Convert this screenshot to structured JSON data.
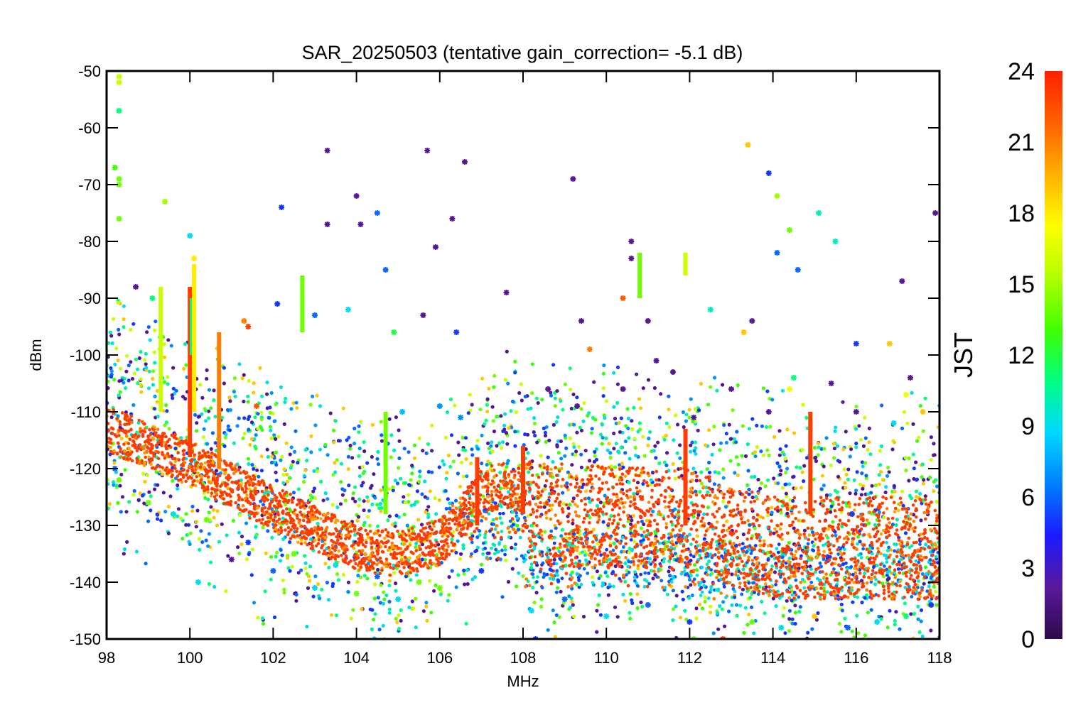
{
  "chart_data": {
    "type": "scatter",
    "title": "SAR_20250503 (tentative gain_correction= -5.1 dB)",
    "xlabel": "MHz",
    "ylabel": "dBm",
    "xlim": [
      98,
      118
    ],
    "ylim": [
      -150,
      -50
    ],
    "x_ticks": [
      "98",
      "100",
      "102",
      "104",
      "106",
      "108",
      "110",
      "112",
      "114",
      "116",
      "118"
    ],
    "y_ticks": [
      "-50",
      "-60",
      "-70",
      "-80",
      "-90",
      "-100",
      "-110",
      "-120",
      "-130",
      "-140",
      "-150"
    ],
    "marker": "asterisk",
    "grid": false,
    "colorbar": {
      "title": "JST",
      "range": [
        0,
        24
      ],
      "ticks": [
        "24",
        "21",
        "18",
        "15",
        "12",
        "9",
        "6",
        "3",
        "0"
      ],
      "colormap": [
        "#2b0a4a",
        "#5a189a",
        "#1a1aff",
        "#0080ff",
        "#00d8ff",
        "#00ff80",
        "#40ff00",
        "#b0ff00",
        "#ffff00",
        "#ffb000",
        "#ff6000",
        "#ff2000"
      ]
    },
    "noise_floor": [
      [
        98,
        -113
      ],
      [
        100,
        -119
      ],
      [
        102,
        -127
      ],
      [
        104,
        -134
      ],
      [
        105,
        -135
      ],
      [
        106,
        -133
      ],
      [
        106.5,
        -129
      ],
      [
        107,
        -124
      ],
      [
        107.5,
        -123
      ],
      [
        108,
        -124
      ],
      [
        108.2,
        -128
      ],
      [
        112,
        -129
      ],
      [
        114,
        -134
      ],
      [
        118,
        -134
      ]
    ],
    "vertical_bands": [
      {
        "x": 99.3,
        "y_top": -88,
        "y_bottom": -110,
        "jst": 16
      },
      {
        "x": 100.0,
        "y_top": -88,
        "y_bottom": -118,
        "jst": 23
      },
      {
        "x": 100.05,
        "y_top": -90,
        "y_bottom": -100,
        "jst": 11
      },
      {
        "x": 100.1,
        "y_top": -84,
        "y_bottom": -110,
        "jst": 18
      },
      {
        "x": 100.7,
        "y_top": -96,
        "y_bottom": -120,
        "jst": 21
      },
      {
        "x": 102.7,
        "y_top": -86,
        "y_bottom": -96,
        "jst": 14
      },
      {
        "x": 104.7,
        "y_top": -110,
        "y_bottom": -128,
        "jst": 14
      },
      {
        "x": 106.9,
        "y_top": -118,
        "y_bottom": -130,
        "jst": 23
      },
      {
        "x": 108.0,
        "y_top": -116,
        "y_bottom": -128,
        "jst": 23
      },
      {
        "x": 110.8,
        "y_top": -82,
        "y_bottom": -90,
        "jst": 14
      },
      {
        "x": 111.9,
        "y_top": -82,
        "y_bottom": -86,
        "jst": 16
      },
      {
        "x": 111.9,
        "y_top": -113,
        "y_bottom": -130,
        "jst": 23
      },
      {
        "x": 114.9,
        "y_top": -110,
        "y_bottom": -128,
        "jst": 23
      }
    ],
    "scattered_points": [
      [
        98.3,
        -51,
        16
      ],
      [
        98.3,
        -52,
        16
      ],
      [
        98.3,
        -57,
        11
      ],
      [
        98.2,
        -67,
        13
      ],
      [
        98.3,
        -69,
        14
      ],
      [
        98.3,
        -70,
        14
      ],
      [
        98.3,
        -76,
        14
      ],
      [
        99.4,
        -73,
        15
      ],
      [
        100.0,
        -79,
        9
      ],
      [
        100.1,
        -83,
        18
      ],
      [
        103.3,
        -64,
        2
      ],
      [
        105.7,
        -64,
        2
      ],
      [
        106.6,
        -66,
        2
      ],
      [
        106.3,
        -76,
        2
      ],
      [
        102.2,
        -74,
        5
      ],
      [
        104.0,
        -72,
        2
      ],
      [
        104.1,
        -77,
        2
      ],
      [
        103.3,
        -77,
        2
      ],
      [
        104.5,
        -75,
        6
      ],
      [
        105.9,
        -81,
        2
      ],
      [
        104.7,
        -85,
        6
      ],
      [
        109.2,
        -69,
        2
      ],
      [
        110.6,
        -80,
        2
      ],
      [
        110.6,
        -83,
        2
      ],
      [
        113.4,
        -63,
        19
      ],
      [
        113.9,
        -68,
        5
      ],
      [
        114.1,
        -72,
        15
      ],
      [
        114.4,
        -78,
        14
      ],
      [
        115.1,
        -75,
        10
      ],
      [
        114.1,
        -82,
        6
      ],
      [
        114.6,
        -85,
        6
      ],
      [
        115.5,
        -80,
        10
      ],
      [
        117.1,
        -87,
        2
      ],
      [
        117.9,
        -75,
        2
      ],
      [
        98.7,
        -88,
        2
      ],
      [
        99.1,
        -90,
        11
      ],
      [
        101.3,
        -94,
        21
      ],
      [
        101.4,
        -95,
        23
      ],
      [
        102.1,
        -91,
        5
      ],
      [
        103.0,
        -93,
        6
      ],
      [
        103.8,
        -92,
        9
      ],
      [
        104.9,
        -96,
        12
      ],
      [
        105.6,
        -93,
        2
      ],
      [
        106.4,
        -96,
        5
      ],
      [
        107.6,
        -89,
        2
      ],
      [
        109.4,
        -94,
        2
      ],
      [
        109.6,
        -99,
        21
      ],
      [
        110.4,
        -90,
        22
      ],
      [
        111.0,
        -94,
        2
      ],
      [
        112.5,
        -92,
        10
      ],
      [
        113.5,
        -94,
        2
      ],
      [
        113.3,
        -96,
        19
      ],
      [
        116.0,
        -98,
        5
      ],
      [
        116.8,
        -98,
        19
      ],
      [
        117.3,
        -104,
        2
      ],
      [
        105.1,
        -110,
        8
      ],
      [
        106.0,
        -109,
        7
      ],
      [
        106.5,
        -111,
        7
      ],
      [
        101.6,
        -109,
        22
      ],
      [
        108.6,
        -106,
        2
      ],
      [
        109.3,
        -109,
        2
      ],
      [
        110.4,
        -106,
        2
      ],
      [
        111.2,
        -101,
        2
      ],
      [
        111.6,
        -103,
        2
      ],
      [
        112.1,
        -111,
        2
      ],
      [
        113.0,
        -106,
        2
      ],
      [
        113.9,
        -110,
        2
      ],
      [
        114.5,
        -104,
        11
      ],
      [
        115.4,
        -105,
        2
      ],
      [
        116.0,
        -110,
        2
      ],
      [
        116.9,
        -112,
        9
      ],
      [
        117.6,
        -110,
        19
      ],
      [
        117.2,
        -107,
        17
      ],
      [
        114.4,
        -106,
        17
      ],
      [
        115.9,
        -128,
        5
      ],
      [
        100.2,
        -140,
        9
      ],
      [
        101.0,
        -136,
        2
      ],
      [
        102.0,
        -138,
        6
      ],
      [
        103.0,
        -141,
        9
      ],
      [
        104.0,
        -142,
        14
      ],
      [
        105.0,
        -143,
        9
      ],
      [
        106.0,
        -141,
        14
      ],
      [
        107.0,
        -138,
        5
      ],
      [
        108.2,
        -145,
        9
      ],
      [
        108.3,
        -150,
        5
      ],
      [
        109.0,
        -143,
        6
      ],
      [
        110.0,
        -146,
        9
      ],
      [
        111.0,
        -144,
        6
      ],
      [
        112.0,
        -147,
        5
      ],
      [
        112.1,
        -150,
        14
      ],
      [
        112.8,
        -150,
        23
      ],
      [
        113.5,
        -147,
        14
      ],
      [
        114.2,
        -148,
        9
      ],
      [
        115.0,
        -146,
        19
      ],
      [
        115.8,
        -148,
        6
      ],
      [
        116.5,
        -147,
        9
      ],
      [
        117.2,
        -146,
        11
      ],
      [
        117.8,
        -144,
        5
      ],
      [
        98.2,
        -120,
        6
      ],
      [
        98.3,
        -122,
        14
      ],
      [
        99.0,
        -126,
        14
      ],
      [
        99.6,
        -128,
        9
      ],
      [
        100.4,
        -129,
        14
      ],
      [
        101.4,
        -133,
        5
      ],
      [
        102.5,
        -135,
        14
      ],
      [
        103.5,
        -137,
        9
      ],
      [
        104.5,
        -139,
        6
      ],
      [
        105.5,
        -140,
        14
      ]
    ]
  }
}
